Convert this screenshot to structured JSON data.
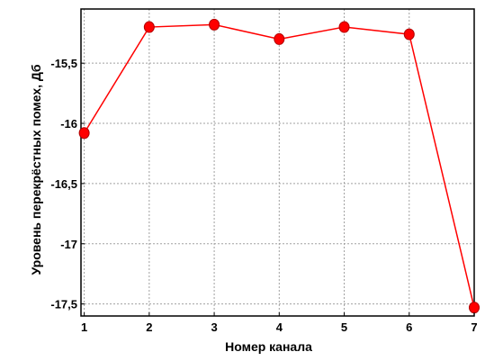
{
  "chart_data": {
    "type": "line",
    "xlabel": "Номер канала",
    "ylabel": "Уровень перекрёстных помех, Дб",
    "x": [
      1,
      2,
      3,
      4,
      5,
      6,
      7
    ],
    "x_tick_labels": [
      "1",
      "2",
      "3",
      "4",
      "5",
      "6",
      "7"
    ],
    "xlim": [
      0.95,
      7.0
    ],
    "ylim": [
      -17.6,
      -15.05
    ],
    "y_ticks": [
      -15.5,
      -16,
      -16.5,
      -17,
      -17.5
    ],
    "y_tick_labels": [
      "-15,5",
      "-16",
      "-16,5",
      "-17",
      "-17,5"
    ],
    "grid": true,
    "series": [
      {
        "values": [
          -16.08,
          -15.2,
          -15.18,
          -15.3,
          -15.2,
          -15.26,
          -17.53
        ],
        "color": "#ff0000"
      }
    ]
  }
}
